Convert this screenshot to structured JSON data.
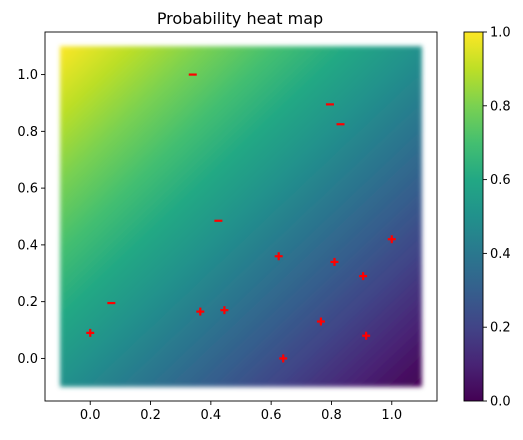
{
  "chart_data": {
    "type": "heatmap",
    "title": "Probability heat map",
    "xlabel": "",
    "ylabel": "",
    "xlim": [
      -0.15,
      1.15
    ],
    "ylim": [
      -0.15,
      1.15
    ],
    "xticks": [
      0.0,
      0.2,
      0.4,
      0.6,
      0.8,
      1.0
    ],
    "xtick_labels": [
      "0.0",
      "0.2",
      "0.4",
      "0.6",
      "0.8",
      "1.0"
    ],
    "yticks": [
      0.0,
      0.2,
      0.4,
      0.6,
      0.8,
      1.0
    ],
    "ytick_labels": [
      "0.0",
      "0.2",
      "0.4",
      "0.6",
      "0.8",
      "1.0"
    ],
    "heatmap_extent": {
      "x": [
        -0.1,
        1.1
      ],
      "y": [
        -0.1,
        1.1
      ]
    },
    "colorscale": "viridis",
    "colorbar": {
      "range": [
        0.0,
        1.0
      ],
      "ticks": [
        0.0,
        0.2,
        0.4,
        0.6,
        0.8,
        1.0
      ],
      "tick_labels": [
        "0.0",
        "0.2",
        "0.4",
        "0.6",
        "0.8",
        "1.0"
      ]
    },
    "marker_color": "#ff0000",
    "points": [
      {
        "x": 0.0,
        "y": 0.09,
        "class": "+"
      },
      {
        "x": 0.365,
        "y": 0.165,
        "class": "+"
      },
      {
        "x": 0.445,
        "y": 0.17,
        "class": "+"
      },
      {
        "x": 0.625,
        "y": 0.36,
        "class": "+"
      },
      {
        "x": 0.64,
        "y": 0.0,
        "class": "+"
      },
      {
        "x": 0.765,
        "y": 0.13,
        "class": "+"
      },
      {
        "x": 0.81,
        "y": 0.34,
        "class": "+"
      },
      {
        "x": 0.905,
        "y": 0.29,
        "class": "+"
      },
      {
        "x": 0.915,
        "y": 0.08,
        "class": "+"
      },
      {
        "x": 1.0,
        "y": 0.42,
        "class": "+"
      },
      {
        "x": 0.07,
        "y": 0.195,
        "class": "-"
      },
      {
        "x": 0.34,
        "y": 1.0,
        "class": "-"
      },
      {
        "x": 0.425,
        "y": 0.485,
        "class": "-"
      },
      {
        "x": 0.795,
        "y": 0.895,
        "class": "-"
      },
      {
        "x": 0.83,
        "y": 0.825,
        "class": "-"
      }
    ]
  }
}
